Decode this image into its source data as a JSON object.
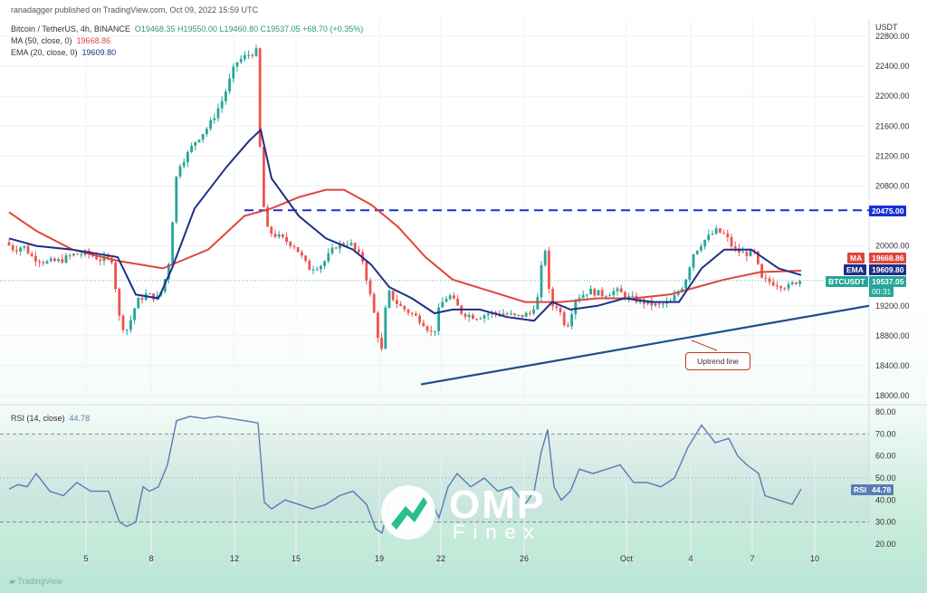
{
  "header": {
    "published_by": "ranadagger published on TradingView.com, Oct 09, 2022 15:59 UTC",
    "symbol_line": "Bitcoin / TetherUS, 4h, BINANCE",
    "ohlc": {
      "o": "O19468.35",
      "h": "H19550.00",
      "l": "L19460.80",
      "c": "C19537.05",
      "change": "+68.70 (+0.35%)"
    },
    "ma_label": "MA (50, close, 0)",
    "ma_value": "19668.86",
    "ema_label": "EMA (20, close, 0)",
    "ema_value": "19609.80",
    "rsi_label": "RSI (14, close)",
    "rsi_value": "44.78"
  },
  "price_axis": {
    "unit": "USDT",
    "ticks": [
      "22800.00",
      "22400.00",
      "22000.00",
      "21600.00",
      "21200.00",
      "20800.00",
      "20000.00",
      "19200.00",
      "18800.00",
      "18400.00",
      "18000.00"
    ]
  },
  "rsi_axis": {
    "ticks": [
      "80.00",
      "70.00",
      "60.00",
      "50.00",
      "40.00",
      "30.00",
      "20.00"
    ]
  },
  "tags": {
    "resistance": "20475.00",
    "ma_name": "MA",
    "ma_value": "19668.86",
    "ema_name": "EMA",
    "ema_value": "19609.80",
    "btc_name": "BTCUSDT",
    "btc_price": "19537.05",
    "btc_time": "00:31",
    "rsi_name": "RSI",
    "rsi_value": "44.78"
  },
  "annotation": "Uptrend line",
  "watermark": {
    "brand": "OMP",
    "sub": "Finex"
  },
  "footer": {
    "logo": "TradingView"
  },
  "colors": {
    "up": "#26a69a",
    "down": "#ef5350",
    "ma": "#e0453b",
    "ema": "#1d2f8a",
    "rsi": "#5a7bb5",
    "level": "#1a2fd6",
    "trend": "#1f4e8c"
  },
  "chart_data": [
    {
      "type": "candlestick",
      "title": "Bitcoin / TetherUS, 4h, BINANCE",
      "x_ticks": [
        "5",
        "8",
        "12",
        "15",
        "19",
        "22",
        "26",
        "Oct",
        "4",
        "7",
        "10"
      ],
      "ylim": [
        18000,
        22800
      ],
      "price_path": [
        [
          0,
          20150
        ],
        [
          10,
          20050
        ],
        [
          20,
          19950
        ],
        [
          30,
          20000
        ],
        [
          40,
          19850
        ],
        [
          55,
          19780
        ],
        [
          70,
          19800
        ],
        [
          85,
          19880
        ],
        [
          100,
          19900
        ],
        [
          115,
          19820
        ],
        [
          128,
          19820
        ],
        [
          137,
          18950
        ],
        [
          145,
          18880
        ],
        [
          155,
          19250
        ],
        [
          165,
          19350
        ],
        [
          180,
          19300
        ],
        [
          190,
          19700
        ],
        [
          200,
          21050
        ],
        [
          210,
          21200
        ],
        [
          220,
          21400
        ],
        [
          235,
          21600
        ],
        [
          250,
          21950
        ],
        [
          265,
          22450
        ],
        [
          278,
          22550
        ],
        [
          288,
          22600
        ],
        [
          293,
          20700
        ],
        [
          300,
          20200
        ],
        [
          315,
          20100
        ],
        [
          330,
          20000
        ],
        [
          345,
          19700
        ],
        [
          360,
          19750
        ],
        [
          375,
          20000
        ],
        [
          390,
          20050
        ],
        [
          405,
          19800
        ],
        [
          420,
          18950
        ],
        [
          425,
          18500
        ],
        [
          432,
          19400
        ],
        [
          445,
          19200
        ],
        [
          458,
          19100
        ],
        [
          470,
          19000
        ],
        [
          483,
          18800
        ],
        [
          490,
          19200
        ],
        [
          500,
          19350
        ],
        [
          515,
          19100
        ],
        [
          530,
          19050
        ],
        [
          545,
          19100
        ],
        [
          560,
          19100
        ],
        [
          575,
          19050
        ],
        [
          590,
          19100
        ],
        [
          600,
          19350
        ],
        [
          605,
          20150
        ],
        [
          612,
          19200
        ],
        [
          620,
          19200
        ],
        [
          630,
          18900
        ],
        [
          640,
          19300
        ],
        [
          655,
          19400
        ],
        [
          670,
          19350
        ],
        [
          685,
          19400
        ],
        [
          700,
          19300
        ],
        [
          715,
          19250
        ],
        [
          730,
          19200
        ],
        [
          745,
          19250
        ],
        [
          760,
          19500
        ],
        [
          770,
          19900
        ],
        [
          780,
          20050
        ],
        [
          795,
          20200
        ],
        [
          805,
          20150
        ],
        [
          815,
          19950
        ],
        [
          825,
          19900
        ],
        [
          838,
          19900
        ],
        [
          845,
          19550
        ],
        [
          860,
          19500
        ],
        [
          875,
          19450
        ],
        [
          885,
          19537
        ]
      ],
      "ma_50": [
        [
          10,
          20450
        ],
        [
          40,
          20200
        ],
        [
          80,
          19950
        ],
        [
          130,
          19800
        ],
        [
          180,
          19700
        ],
        [
          230,
          19950
        ],
        [
          270,
          20400
        ],
        [
          300,
          20500
        ],
        [
          330,
          20650
        ],
        [
          360,
          20750
        ],
        [
          380,
          20750
        ],
        [
          410,
          20550
        ],
        [
          440,
          20250
        ],
        [
          470,
          19850
        ],
        [
          500,
          19550
        ],
        [
          540,
          19400
        ],
        [
          580,
          19250
        ],
        [
          620,
          19250
        ],
        [
          660,
          19300
        ],
        [
          700,
          19300
        ],
        [
          740,
          19350
        ],
        [
          770,
          19450
        ],
        [
          800,
          19550
        ],
        [
          840,
          19650
        ],
        [
          885,
          19669
        ]
      ],
      "ema_20": [
        [
          10,
          20100
        ],
        [
          40,
          20000
        ],
        [
          80,
          19950
        ],
        [
          130,
          19850
        ],
        [
          150,
          19350
        ],
        [
          175,
          19300
        ],
        [
          190,
          19700
        ],
        [
          215,
          20500
        ],
        [
          250,
          21050
        ],
        [
          275,
          21400
        ],
        [
          288,
          21550
        ],
        [
          300,
          20900
        ],
        [
          330,
          20400
        ],
        [
          360,
          20100
        ],
        [
          390,
          19950
        ],
        [
          410,
          19750
        ],
        [
          430,
          19450
        ],
        [
          455,
          19300
        ],
        [
          480,
          19100
        ],
        [
          500,
          19150
        ],
        [
          530,
          19150
        ],
        [
          560,
          19050
        ],
        [
          590,
          19000
        ],
        [
          610,
          19250
        ],
        [
          630,
          19150
        ],
        [
          660,
          19200
        ],
        [
          690,
          19300
        ],
        [
          720,
          19250
        ],
        [
          750,
          19250
        ],
        [
          775,
          19700
        ],
        [
          800,
          19950
        ],
        [
          830,
          19950
        ],
        [
          860,
          19700
        ],
        [
          885,
          19610
        ]
      ],
      "resistance_level": 20475,
      "uptrend_line": [
        [
          465,
          18150
        ],
        [
          960,
          19200
        ]
      ]
    },
    {
      "type": "line",
      "title": "RSI (14, close)",
      "ylim": [
        15,
        80
      ],
      "bands": [
        30,
        70
      ],
      "midline": 50,
      "values": [
        [
          10,
          45
        ],
        [
          20,
          47
        ],
        [
          30,
          46
        ],
        [
          40,
          52
        ],
        [
          55,
          44
        ],
        [
          70,
          42
        ],
        [
          85,
          48
        ],
        [
          100,
          44
        ],
        [
          120,
          44
        ],
        [
          132,
          30
        ],
        [
          140,
          28
        ],
        [
          150,
          30
        ],
        [
          158,
          46
        ],
        [
          165,
          44
        ],
        [
          175,
          46
        ],
        [
          185,
          56
        ],
        [
          195,
          76
        ],
        [
          210,
          78
        ],
        [
          225,
          77
        ],
        [
          240,
          78
        ],
        [
          255,
          77
        ],
        [
          270,
          76
        ],
        [
          285,
          75
        ],
        [
          292,
          39
        ],
        [
          300,
          36
        ],
        [
          315,
          40
        ],
        [
          330,
          38
        ],
        [
          345,
          36
        ],
        [
          360,
          38
        ],
        [
          375,
          42
        ],
        [
          390,
          44
        ],
        [
          405,
          38
        ],
        [
          415,
          27
        ],
        [
          422,
          25
        ],
        [
          430,
          38
        ],
        [
          445,
          42
        ],
        [
          460,
          38
        ],
        [
          475,
          40
        ],
        [
          485,
          32
        ],
        [
          495,
          46
        ],
        [
          505,
          52
        ],
        [
          520,
          46
        ],
        [
          535,
          50
        ],
        [
          550,
          44
        ],
        [
          565,
          46
        ],
        [
          580,
          38
        ],
        [
          590,
          44
        ],
        [
          598,
          62
        ],
        [
          605,
          72
        ],
        [
          612,
          46
        ],
        [
          620,
          40
        ],
        [
          630,
          44
        ],
        [
          640,
          54
        ],
        [
          655,
          52
        ],
        [
          670,
          54
        ],
        [
          685,
          56
        ],
        [
          700,
          48
        ],
        [
          715,
          48
        ],
        [
          730,
          46
        ],
        [
          745,
          50
        ],
        [
          760,
          64
        ],
        [
          775,
          74
        ],
        [
          790,
          66
        ],
        [
          805,
          68
        ],
        [
          815,
          60
        ],
        [
          825,
          56
        ],
        [
          838,
          52
        ],
        [
          845,
          42
        ],
        [
          860,
          40
        ],
        [
          875,
          38
        ],
        [
          885,
          45
        ]
      ]
    }
  ]
}
